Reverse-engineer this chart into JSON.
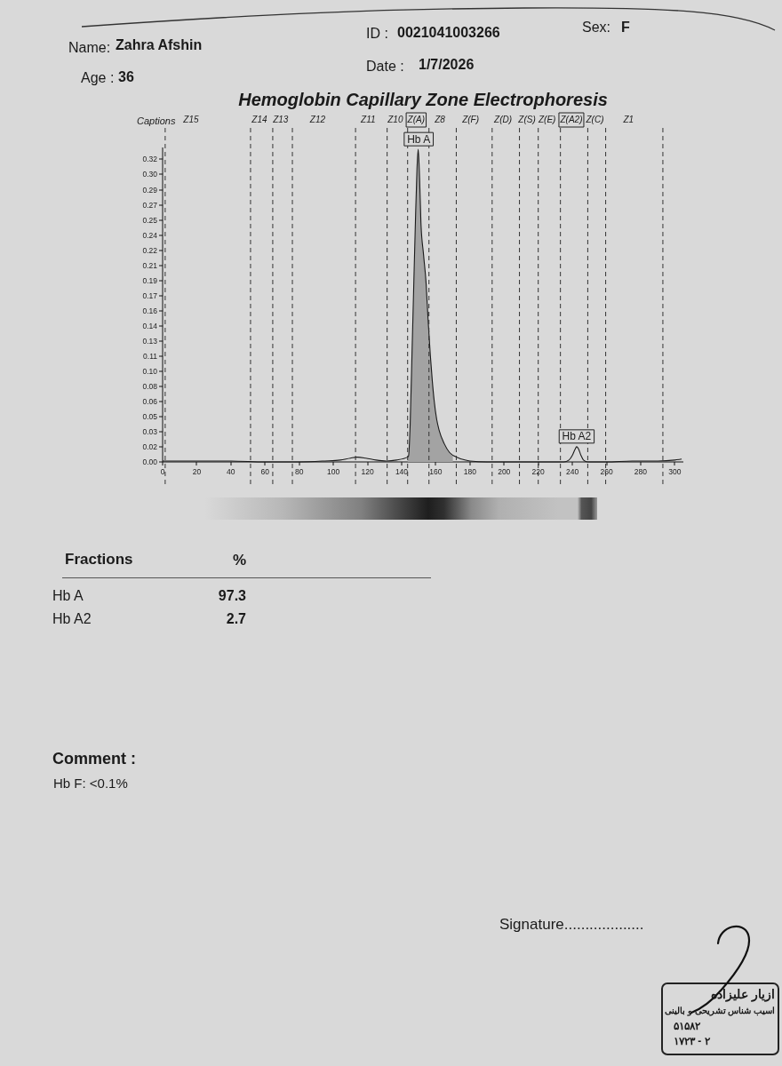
{
  "chart_data": {
    "type": "line",
    "title": "Hemoglobin Capillary Zone Electrophoresis",
    "xlim": [
      0,
      305
    ],
    "xticks": [
      0,
      20,
      40,
      60,
      80,
      100,
      120,
      140,
      160,
      180,
      200,
      220,
      240,
      260,
      280,
      300
    ],
    "ylim": [
      0,
      0.33
    ],
    "yticks": [
      {
        "value": 0,
        "label": "0.00"
      },
      {
        "value": 0.0159,
        "label": "0.02"
      },
      {
        "value": 0.0317,
        "label": "0.03"
      },
      {
        "value": 0.0476,
        "label": "0.05"
      },
      {
        "value": 0.0635,
        "label": "0.06"
      },
      {
        "value": 0.0794,
        "label": "0.08"
      },
      {
        "value": 0.0952,
        "label": "0.10"
      },
      {
        "value": 0.1111,
        "label": "0.11"
      },
      {
        "value": 0.127,
        "label": "0.13"
      },
      {
        "value": 0.1429,
        "label": "0.14"
      },
      {
        "value": 0.1587,
        "label": "0.16"
      },
      {
        "value": 0.1746,
        "label": "0.17"
      },
      {
        "value": 0.1905,
        "label": "0.19"
      },
      {
        "value": 0.2063,
        "label": "0.21"
      },
      {
        "value": 0.2222,
        "label": "0.22"
      },
      {
        "value": 0.2381,
        "label": "0.24"
      },
      {
        "value": 0.254,
        "label": "0.25"
      },
      {
        "value": 0.2698,
        "label": "0.27"
      },
      {
        "value": 0.2857,
        "label": "0.29"
      },
      {
        "value": 0.3016,
        "label": "0.30"
      },
      {
        "value": 0.3175,
        "label": "0.32"
      }
    ],
    "series": [
      {
        "type": "area",
        "color": "#a3a3a3",
        "x": [
          143.5,
          144,
          145,
          146,
          147,
          148,
          149,
          149.7,
          150.5,
          151.3,
          152.8,
          154.3,
          155.5,
          156.8,
          158,
          159,
          160.5,
          162,
          165,
          168,
          170
        ],
        "values": [
          0.005,
          0.006,
          0.04,
          0.109,
          0.179,
          0.248,
          0.308,
          0.328,
          0.298,
          0.251,
          0.218,
          0.188,
          0.149,
          0.112,
          0.084,
          0.065,
          0.045,
          0.033,
          0.019,
          0.01,
          0.007
        ]
      },
      {
        "color": "#1a1a1a",
        "x": [
          0,
          20,
          40,
          60,
          80,
          95,
          104,
          110,
          114,
          119,
          125,
          131,
          137,
          143.5,
          144,
          145,
          146,
          147,
          148,
          149,
          149.7,
          150.5,
          151.3,
          152.8,
          154.3,
          155.5,
          156.8,
          158,
          159,
          160.5,
          162,
          165,
          168,
          171,
          175,
          180,
          190,
          210,
          235,
          238,
          240,
          241.5,
          242.5,
          243.5,
          245,
          246.5,
          249,
          260,
          275,
          290,
          300,
          304
        ],
        "values": [
          0.001,
          0.001,
          0.001,
          0,
          0,
          0.001,
          0.002,
          0.004,
          0.005,
          0.004,
          0.002,
          0.001,
          0.002,
          0.005,
          0.006,
          0.04,
          0.109,
          0.179,
          0.248,
          0.308,
          0.328,
          0.298,
          0.251,
          0.218,
          0.188,
          0.149,
          0.112,
          0.084,
          0.065,
          0.045,
          0.033,
          0.019,
          0.01,
          0.006,
          0.003,
          0.001,
          0,
          0,
          0,
          0.002,
          0.007,
          0.013,
          0.016,
          0.014,
          0.007,
          0.002,
          0,
          0,
          0.001,
          0.001,
          0.002,
          0.003
        ]
      }
    ],
    "ref_lines": [
      {
        "axis": "x",
        "value": 1.5,
        "label": "Z15",
        "line_style": "dashed"
      },
      {
        "axis": "x",
        "value": 51.5,
        "label": "Z14",
        "line_style": "dashed"
      },
      {
        "axis": "x",
        "value": 64.5,
        "label": "Z13",
        "line_style": "dashed"
      },
      {
        "axis": "x",
        "value": 76,
        "label": "Z12",
        "line_style": "dashed"
      },
      {
        "axis": "x",
        "value": 113,
        "label": "Z11",
        "line_style": "dashed"
      },
      {
        "axis": "x",
        "value": 131.5,
        "label": "Z10",
        "line_style": "dashed"
      },
      {
        "axis": "x",
        "value": 143.5,
        "label": "Z(A)",
        "line_style": "dashed"
      },
      {
        "axis": "x",
        "value": 156,
        "label": "Z8",
        "line_style": "dashed"
      },
      {
        "axis": "x",
        "value": 172,
        "label": "Z(F)",
        "line_style": "dashed"
      },
      {
        "axis": "x",
        "value": 193,
        "label": "Z(D)",
        "line_style": "dashed"
      },
      {
        "axis": "x",
        "value": 209,
        "label": "Z(S)",
        "line_style": "dashed"
      },
      {
        "axis": "x",
        "value": 220,
        "label": "Z(E)",
        "line_style": "dashed"
      },
      {
        "axis": "x",
        "value": 233,
        "label": "Z(A2)",
        "line_style": "dashed"
      },
      {
        "axis": "x",
        "value": 249,
        "label": "Z(C)",
        "line_style": "dashed"
      },
      {
        "axis": "x",
        "value": 259.5,
        "label": "Z1",
        "line_style": "dashed"
      },
      {
        "axis": "x",
        "value": 293,
        "line_style": "dashed"
      }
    ],
    "annotations": [
      "Name:",
      "Zahra Afshin",
      "Age :",
      "36",
      "ID :",
      "0021041003266",
      "Sex:",
      "F",
      "Date :",
      "1/7/2026",
      "Captions",
      {
        "text": "Hb A",
        "x": 150,
        "y": 0.328
      },
      {
        "text": "Hb A2",
        "x": 242.5,
        "y": 0.016
      },
      "Fractions",
      "%",
      "Hb A",
      "97.3",
      "Hb A2",
      "2.7",
      "Comment :",
      "Hb F: <0.1%",
      "Signature...................",
      "ازیار علیزاده",
      "اسیب شناس تشریحی و بالینی",
      "۵۱۵۸۲",
      "۱۷۲۳ - ۲"
    ]
  }
}
